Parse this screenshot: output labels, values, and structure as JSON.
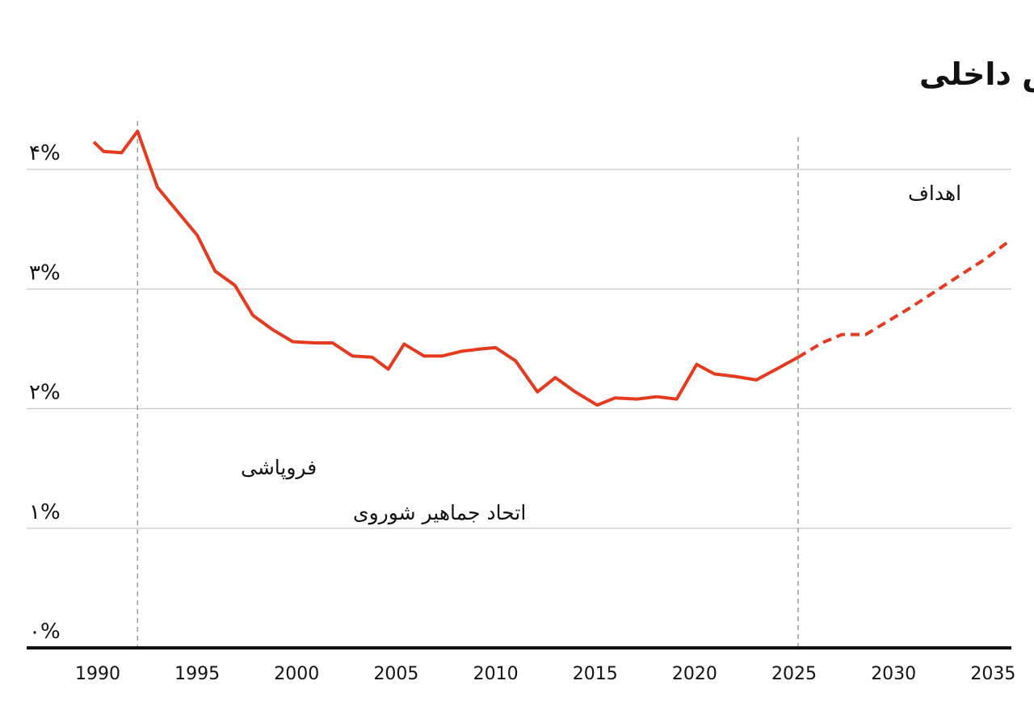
{
  "chart_data": {
    "type": "line",
    "title": "هزینه‌های دفاعی بریتانیا به‌عنوان درصدی از  تولید ناخالص داخلی",
    "xlabel": "",
    "ylabel": "",
    "xlim": [
      1990,
      2036
    ],
    "ylim": [
      0,
      4
    ],
    "x_ticks": [
      1990,
      1995,
      2000,
      2005,
      2010,
      2015,
      2020,
      2025,
      2030,
      2035
    ],
    "y_ticks": [
      0,
      1,
      2,
      3,
      4
    ],
    "y_tick_labels": [
      "۰%",
      "۱%",
      "۲%",
      "۳%",
      "۴%"
    ],
    "x_tick_labels": [
      "1990",
      "1995",
      "2000",
      "2005",
      "2010",
      "2015",
      "2020",
      "2025",
      "2030",
      "2035"
    ],
    "grid": true,
    "series": [
      {
        "style": "solid",
        "color": "#e63a1f",
        "x": [
          1989.8,
          1990.3,
          1991.2,
          1992.0,
          1993.0,
          1994.0,
          1995.0,
          1995.9,
          1996.9,
          1997.8,
          1998.8,
          1999.8,
          2000.9,
          2001.8,
          2002.8,
          2003.8,
          2004.6,
          2005.4,
          2006.4,
          2007.3,
          2008.3,
          2009.3,
          2010.0,
          2011.0,
          2012.1,
          2013.0,
          2014.0,
          2015.1,
          2016.0,
          2017.1,
          2018.1,
          2019.1,
          2020.1,
          2021.0,
          2022.0,
          2023.1,
          2024.1,
          2025.2
        ],
        "values": [
          4.23,
          4.15,
          4.14,
          4.32,
          3.85,
          3.65,
          3.45,
          3.15,
          3.03,
          2.78,
          2.66,
          2.56,
          2.55,
          2.55,
          2.44,
          2.43,
          2.33,
          2.54,
          2.44,
          2.44,
          2.48,
          2.5,
          2.51,
          2.4,
          2.14,
          2.26,
          2.14,
          2.03,
          2.09,
          2.08,
          2.1,
          2.08,
          2.37,
          2.29,
          2.27,
          2.24,
          2.33,
          2.43
        ]
      },
      {
        "style": "dashed",
        "color": "#e63a1f",
        "x": [
          2025.2,
          2026.4,
          2027.4,
          2028.6,
          2029.6,
          2030.8,
          2032.0,
          2033.2,
          2034.6,
          2035.8
        ],
        "values": [
          2.43,
          2.55,
          2.62,
          2.62,
          2.72,
          2.84,
          2.97,
          3.1,
          3.25,
          3.4
        ]
      }
    ],
    "annotations": [
      {
        "x": 1992,
        "lines": [
          "فروپاشی",
          "اتحاد جماهیر شوروی"
        ]
      },
      {
        "x": 2025.2,
        "lines": [
          "اهداف"
        ]
      }
    ]
  }
}
